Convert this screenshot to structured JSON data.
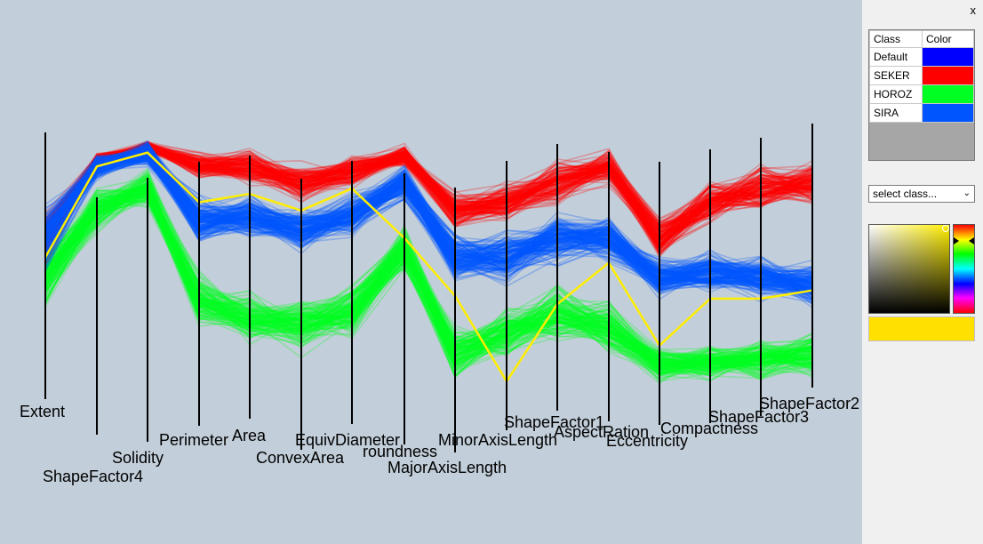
{
  "panel": {
    "close_label": "x",
    "table_headers": {
      "class": "Class",
      "color": "Color"
    },
    "classes": [
      {
        "name": "Default",
        "color": "#0000ff"
      },
      {
        "name": "SEKER",
        "color": "#ff0000"
      },
      {
        "name": "HOROZ",
        "color": "#00ff22"
      },
      {
        "name": "SIRA",
        "color": "#0055ff"
      }
    ],
    "select_placeholder": "select class...",
    "picker_hue": "#ffee00",
    "selected_color": "#ffe000"
  },
  "chart_data": {
    "type": "parallel-coordinates",
    "axes": [
      "Extent",
      "ShapeFactor4",
      "Solidity",
      "Perimeter",
      "Area",
      "ConvexArea",
      "EquivDiameter",
      "roundness",
      "MajorAxisLength",
      "MinorAxisLength",
      "ShapeFactor1",
      "AspectRation",
      "Eccentricity",
      "Compactness",
      "ShapeFactor3",
      "ShapeFactor2"
    ],
    "series": [
      {
        "name": "SEKER",
        "color": "#ff0000",
        "center": [
          0.62,
          0.9,
          0.95,
          0.88,
          0.88,
          0.82,
          0.86,
          0.92,
          0.72,
          0.75,
          0.82,
          0.88,
          0.62,
          0.75,
          0.8,
          0.82
        ],
        "spread": [
          0.12,
          0.04,
          0.03,
          0.06,
          0.08,
          0.09,
          0.08,
          0.05,
          0.08,
          0.1,
          0.1,
          0.08,
          0.1,
          0.1,
          0.1,
          0.1
        ]
      },
      {
        "name": "SIRA",
        "color": "#0055ff",
        "center": [
          0.62,
          0.88,
          0.93,
          0.68,
          0.7,
          0.65,
          0.7,
          0.82,
          0.55,
          0.55,
          0.62,
          0.62,
          0.48,
          0.5,
          0.48,
          0.45
        ],
        "spread": [
          0.16,
          0.06,
          0.06,
          0.1,
          0.1,
          0.1,
          0.1,
          0.08,
          0.1,
          0.12,
          0.12,
          0.1,
          0.1,
          0.1,
          0.1,
          0.1
        ]
      },
      {
        "name": "HOROZ",
        "color": "#00ff22",
        "center": [
          0.48,
          0.72,
          0.8,
          0.4,
          0.33,
          0.3,
          0.35,
          0.58,
          0.2,
          0.28,
          0.35,
          0.3,
          0.16,
          0.17,
          0.18,
          0.2
        ],
        "spread": [
          0.16,
          0.1,
          0.08,
          0.12,
          0.12,
          0.12,
          0.12,
          0.1,
          0.12,
          0.12,
          0.12,
          0.12,
          0.08,
          0.08,
          0.09,
          0.1
        ]
      }
    ],
    "highlight": {
      "color": "#ffee00",
      "values": [
        0.55,
        0.88,
        0.93,
        0.75,
        0.78,
        0.72,
        0.8,
        0.62,
        0.41,
        0.1,
        0.38,
        0.53,
        0.23,
        0.4,
        0.4,
        0.43
      ]
    }
  }
}
